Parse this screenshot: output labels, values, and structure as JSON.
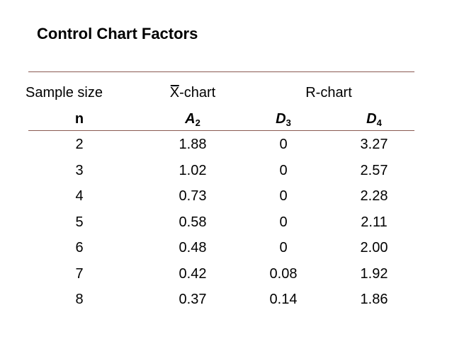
{
  "title": "Control Chart Factors",
  "header": {
    "sample_size": "Sample size",
    "xbar_prefix": "X",
    "xbar_suffix": "-chart",
    "r_chart": "R-chart",
    "n": "n",
    "a": "A",
    "a_sub": "2",
    "d3": "D",
    "d3_sub": "3",
    "d4": "D",
    "d4_sub": "4"
  },
  "rows": [
    [
      "2",
      "1.88",
      "0",
      "3.27"
    ],
    [
      "3",
      "1.02",
      "0",
      "2.57"
    ],
    [
      "4",
      "0.73",
      "0",
      "2.28"
    ],
    [
      "5",
      "0.58",
      "0",
      "2.11"
    ],
    [
      "6",
      "0.48",
      "0",
      "2.00"
    ],
    [
      "7",
      "0.42",
      "0.08",
      "1.92"
    ],
    [
      "8",
      "0.37",
      "0.14",
      "1.86"
    ]
  ]
}
